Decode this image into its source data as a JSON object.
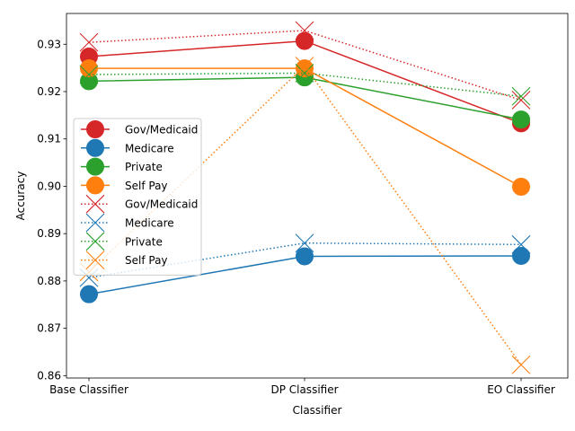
{
  "chart_data": {
    "type": "line",
    "categories": [
      "Base Classifier",
      "DP Classifier",
      "EO Classifier"
    ],
    "xlabel": "Classifier",
    "ylabel": "Accuracy",
    "ylim": [
      0.8595,
      0.9365
    ],
    "yticks": [
      0.86,
      0.87,
      0.88,
      0.89,
      0.9,
      0.91,
      0.92,
      0.93
    ],
    "ytick_labels": [
      "0.86",
      "0.87",
      "0.88",
      "0.89",
      "0.90",
      "0.91",
      "0.92",
      "0.93"
    ],
    "grid": false,
    "legend_position": "center-left",
    "series": [
      {
        "name": "Gov/Medicaid",
        "color": "#d62728",
        "line": "solid",
        "marker": "circle",
        "values": [
          0.9274,
          0.9307,
          0.9133
        ]
      },
      {
        "name": "Medicare",
        "color": "#1f77b4",
        "line": "solid",
        "marker": "circle",
        "values": [
          0.8772,
          0.8852,
          0.8853
        ]
      },
      {
        "name": "Private",
        "color": "#2ca02c",
        "line": "solid",
        "marker": "circle",
        "values": [
          0.9222,
          0.923,
          0.9141
        ]
      },
      {
        "name": "Self Pay",
        "color": "#ff7f0e",
        "line": "solid",
        "marker": "circle",
        "values": [
          0.9249,
          0.9249,
          0.8999
        ]
      },
      {
        "name": "Gov/Medicaid",
        "color": "#d62728",
        "line": "dotted",
        "marker": "x",
        "values": [
          0.9304,
          0.9329,
          0.9182
        ]
      },
      {
        "name": "Medicare",
        "color": "#1f77b4",
        "line": "dotted",
        "marker": "x",
        "values": [
          0.8807,
          0.888,
          0.8877
        ]
      },
      {
        "name": "Private",
        "color": "#2ca02c",
        "line": "dotted",
        "marker": "x",
        "values": [
          0.9236,
          0.9239,
          0.919
        ]
      },
      {
        "name": "Self Pay",
        "color": "#ff7f0e",
        "line": "dotted",
        "marker": "x",
        "values": [
          0.8819,
          0.9254,
          0.8623
        ]
      }
    ]
  }
}
